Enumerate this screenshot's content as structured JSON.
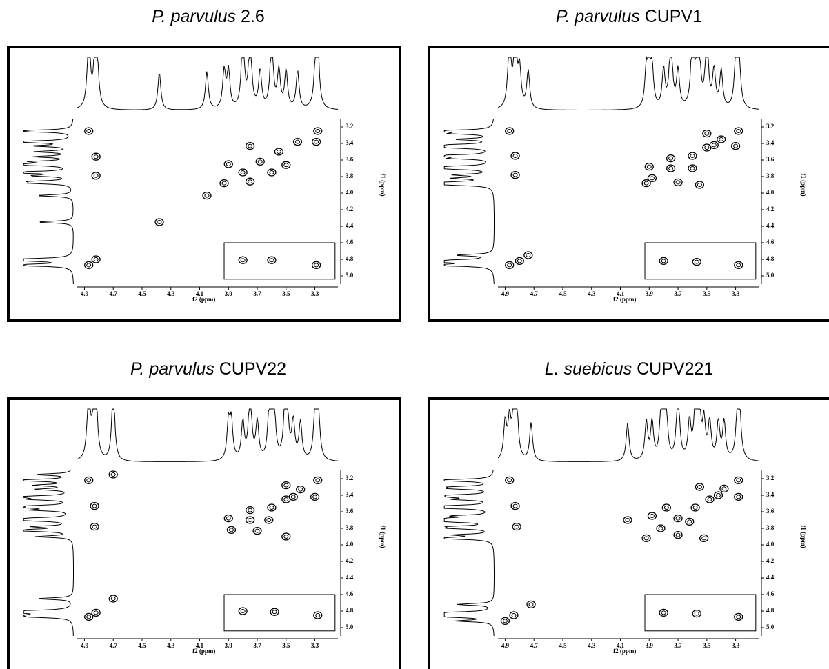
{
  "chart_data": [
    {
      "type": "scatter",
      "title": {
        "species": "P. parvulus",
        "strain": "2.6"
      },
      "xlabel": "f2 (ppm)",
      "ylabel": "f1 (ppm)",
      "color": "#000000",
      "xlim": [
        4.95,
        3.14
      ],
      "xticks": [
        4.9,
        4.7,
        4.5,
        4.3,
        4.1,
        3.9,
        3.7,
        3.5,
        3.3
      ],
      "ylim": [
        3.1,
        5.1
      ],
      "yticks": [
        3.2,
        3.4,
        3.6,
        3.8,
        {
          "value": 4,
          "label": "4.0"
        },
        4.2,
        4.4,
        4.6,
        4.8,
        {
          "value": 5,
          "label": "5.0"
        }
      ],
      "x": [
        3.28,
        3.42,
        3.55,
        3.68,
        3.8,
        3.93,
        4.05,
        4.38,
        4.87,
        4.82,
        4.87,
        4.82,
        4.82,
        3.9,
        3.75,
        3.75,
        3.5,
        3.29,
        3.6,
        3.8,
        3.6,
        3.29
      ],
      "y": [
        3.25,
        3.38,
        3.5,
        3.62,
        3.75,
        3.88,
        4.03,
        4.35,
        4.87,
        4.8,
        3.25,
        3.56,
        3.79,
        3.65,
        3.43,
        3.86,
        3.66,
        3.38,
        3.75,
        4.81,
        4.81,
        4.87
      ]
    },
    {
      "type": "scatter",
      "title": {
        "species": "P. parvulus",
        "strain": "CUPV1"
      },
      "xlabel": "f2 (ppm)",
      "ylabel": "f1 (ppm)",
      "color": "#000000",
      "xlim": [
        4.95,
        3.14
      ],
      "xticks": [
        4.9,
        4.7,
        4.5,
        4.3,
        4.1,
        3.9,
        3.7,
        3.5,
        3.3
      ],
      "ylim": [
        3.1,
        5.1
      ],
      "yticks": [
        3.2,
        3.4,
        3.6,
        3.8,
        {
          "value": 4,
          "label": "4.0"
        },
        4.2,
        4.4,
        4.6,
        4.8,
        {
          "value": 5,
          "label": "5.0"
        }
      ],
      "x": [
        3.28,
        3.4,
        3.5,
        3.6,
        3.75,
        3.88,
        3.92,
        4.87,
        4.8,
        4.74,
        4.87,
        4.83,
        4.83,
        3.9,
        3.7,
        3.5,
        3.3,
        3.45,
        3.6,
        3.75,
        3.55,
        3.8,
        3.57,
        3.28
      ],
      "y": [
        3.25,
        3.35,
        3.45,
        3.55,
        3.7,
        3.82,
        3.88,
        4.87,
        4.82,
        4.75,
        3.25,
        3.55,
        3.78,
        3.68,
        3.87,
        3.28,
        3.43,
        3.42,
        3.7,
        3.58,
        3.9,
        4.82,
        4.83,
        4.87
      ]
    },
    {
      "type": "scatter",
      "title": {
        "species": "P. parvulus",
        "strain": "CUPV22"
      },
      "xlabel": "f2 (ppm)",
      "ylabel": "f1 (ppm)",
      "color": "#000000",
      "xlim": [
        4.95,
        3.14
      ],
      "xticks": [
        4.9,
        4.7,
        4.5,
        4.3,
        4.1,
        3.9,
        3.7,
        3.5,
        3.3
      ],
      "ylim": [
        3.1,
        5.1
      ],
      "yticks": [
        3.2,
        3.4,
        3.6,
        3.8,
        {
          "value": 4,
          "label": "4.0"
        },
        4.2,
        4.4,
        4.6,
        4.8,
        {
          "value": 5,
          "label": "5.0"
        }
      ],
      "x": [
        3.28,
        3.4,
        3.5,
        3.6,
        3.75,
        3.88,
        4.87,
        4.82,
        4.7,
        4.7,
        4.87,
        4.83,
        4.83,
        3.9,
        3.7,
        3.5,
        3.3,
        3.45,
        3.62,
        3.75,
        3.5,
        3.8,
        3.58,
        3.28
      ],
      "y": [
        3.22,
        3.33,
        3.45,
        3.55,
        3.7,
        3.82,
        4.87,
        4.82,
        4.65,
        3.15,
        3.22,
        3.53,
        3.78,
        3.68,
        3.83,
        3.28,
        3.42,
        3.42,
        3.7,
        3.58,
        3.9,
        4.8,
        4.81,
        4.85
      ]
    },
    {
      "type": "scatter",
      "title": {
        "species": "L. suebicus",
        "strain": "CUPV221"
      },
      "xlabel": "f2 (ppm)",
      "ylabel": "f1 (ppm)",
      "color": "#000000",
      "xlim": [
        4.95,
        3.14
      ],
      "xticks": [
        4.9,
        4.7,
        4.5,
        4.3,
        4.1,
        3.9,
        3.7,
        3.5,
        3.3
      ],
      "ylim": [
        3.1,
        5.1
      ],
      "yticks": [
        3.2,
        3.4,
        3.6,
        3.8,
        {
          "value": 4,
          "label": "4.0"
        },
        4.2,
        4.4,
        4.6,
        4.8,
        {
          "value": 5,
          "label": "5.0"
        }
      ],
      "x": [
        3.28,
        3.38,
        3.48,
        3.58,
        3.7,
        3.82,
        3.92,
        4.9,
        4.84,
        4.72,
        4.87,
        4.83,
        4.82,
        3.88,
        3.7,
        3.55,
        3.28,
        3.42,
        3.62,
        3.78,
        3.52,
        3.8,
        3.57,
        3.28,
        4.05
      ],
      "y": [
        3.22,
        3.32,
        3.45,
        3.55,
        3.68,
        3.8,
        3.92,
        4.92,
        4.85,
        4.72,
        3.22,
        3.53,
        3.78,
        3.65,
        3.88,
        3.3,
        3.42,
        3.4,
        3.72,
        3.55,
        3.92,
        4.82,
        4.83,
        4.87,
        3.7
      ]
    }
  ]
}
